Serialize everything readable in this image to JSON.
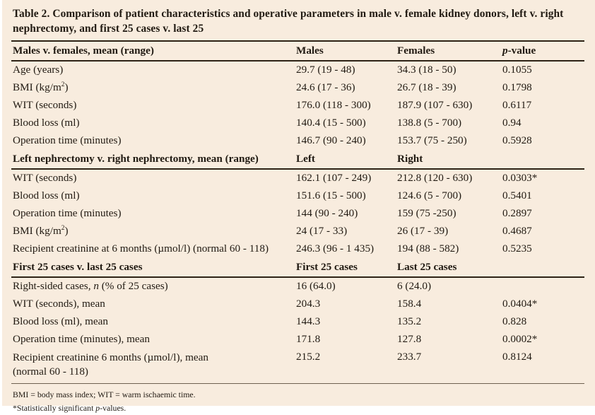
{
  "page": {
    "background_color": "#f8ecde",
    "text_color": "#211a12",
    "rule_color": "#2e2316"
  },
  "title": "Table 2. Comparison of patient characteristics and operative parameters in male v. female kidney donors, left v. right nephrectomy, and first 25 cases v. last 25",
  "table": {
    "sections": [
      {
        "header": {
          "label": [
            {
              "text": "Males v. females, mean (range)"
            }
          ],
          "cols": [
            [
              {
                "text": "Males"
              }
            ],
            [
              {
                "text": "Females"
              }
            ],
            [
              {
                "text": "p",
                "style": "italic"
              },
              {
                "text": "-value"
              }
            ]
          ]
        },
        "rows": [
          {
            "label": [
              {
                "text": "Age (years)"
              }
            ],
            "cols": [
              "29.7 (19 - 48)",
              "34.3 (18 - 50)",
              "0.1055"
            ]
          },
          {
            "label": [
              {
                "text": "BMI (kg/m"
              },
              {
                "text": "2",
                "style": "sup"
              },
              {
                "text": ")"
              }
            ],
            "cols": [
              "24.6 (17 - 36)",
              "26.7 (18 - 39)",
              "0.1798"
            ]
          },
          {
            "label": [
              {
                "text": "WIT (seconds)"
              }
            ],
            "cols": [
              "176.0 (118 - 300)",
              "187.9 (107 - 630)",
              "0.6117"
            ]
          },
          {
            "label": [
              {
                "text": "Blood loss (ml)"
              }
            ],
            "cols": [
              "140.4 (15 - 500)",
              "138.8 (5 - 700)",
              "0.94"
            ]
          },
          {
            "label": [
              {
                "text": "Operation time (minutes)"
              }
            ],
            "cols": [
              "146.7 (90 - 240)",
              "153.7 (75 - 250)",
              "0.5928"
            ]
          }
        ]
      },
      {
        "header": {
          "label": [
            {
              "text": "Left nephrectomy v. right nephrectomy, mean (range)"
            }
          ],
          "cols": [
            [
              {
                "text": "Left"
              }
            ],
            [
              {
                "text": "Right"
              }
            ],
            []
          ]
        },
        "rows": [
          {
            "label": [
              {
                "text": "WIT (seconds)"
              }
            ],
            "cols": [
              "162.1 (107 - 249)",
              "212.8 (120 - 630)",
              "0.0303*"
            ]
          },
          {
            "label": [
              {
                "text": "Blood loss (ml)"
              }
            ],
            "cols": [
              "151.6 (15 - 500)",
              "124.6 (5 - 700)",
              "0.5401"
            ]
          },
          {
            "label": [
              {
                "text": "Operation time (minutes)"
              }
            ],
            "cols": [
              "144 (90 - 240)",
              "159 (75 -250)",
              "0.2897"
            ]
          },
          {
            "label": [
              {
                "text": "BMI (kg/m"
              },
              {
                "text": "2",
                "style": "sup"
              },
              {
                "text": ")"
              }
            ],
            "cols": [
              "24 (17 - 33)",
              "26 (17 - 39)",
              "0.4687"
            ]
          },
          {
            "label": [
              {
                "text": "Recipient creatinine at 6 months (µmol/l) (normal 60 - 118)"
              }
            ],
            "cols": [
              "246.3 (96 - 1 435)",
              "194 (88 - 582)",
              "0.5235"
            ]
          }
        ]
      },
      {
        "header": {
          "label": [
            {
              "text": "First 25 cases v. last 25 cases"
            }
          ],
          "cols": [
            [
              {
                "text": "First 25 cases"
              }
            ],
            [
              {
                "text": "Last 25 cases"
              }
            ],
            []
          ]
        },
        "rows": [
          {
            "label": [
              {
                "text": "Right-sided cases, "
              },
              {
                "text": "n",
                "style": "italic"
              },
              {
                "text": " (% of 25 cases)"
              }
            ],
            "cols": [
              "16 (64.0)",
              "6 (24.0)",
              ""
            ]
          },
          {
            "label": [
              {
                "text": "WIT (seconds), mean"
              }
            ],
            "cols": [
              "204.3",
              "158.4",
              "0.0404*"
            ]
          },
          {
            "label": [
              {
                "text": "Blood loss (ml), mean"
              }
            ],
            "cols": [
              "144.3",
              "135.2",
              "0.828"
            ]
          },
          {
            "label": [
              {
                "text": "Operation time (minutes), mean"
              }
            ],
            "cols": [
              "171.8",
              "127.8",
              "0.0002*"
            ]
          },
          {
            "label": [
              {
                "text": "Recipient creatinine 6 months (µmol/l), mean"
              },
              {
                "br": true
              },
              {
                "text": "(normal 60 - 118)"
              }
            ],
            "cols": [
              "215.2",
              "233.7",
              "0.8124"
            ],
            "tall": true
          }
        ]
      }
    ]
  },
  "footnotes": [
    [
      {
        "text": "BMI = body mass index; WIT = warm ischaemic time."
      }
    ],
    [
      {
        "text": "*Statistically significant "
      },
      {
        "text": "p",
        "style": "italic"
      },
      {
        "text": "-values."
      }
    ]
  ]
}
